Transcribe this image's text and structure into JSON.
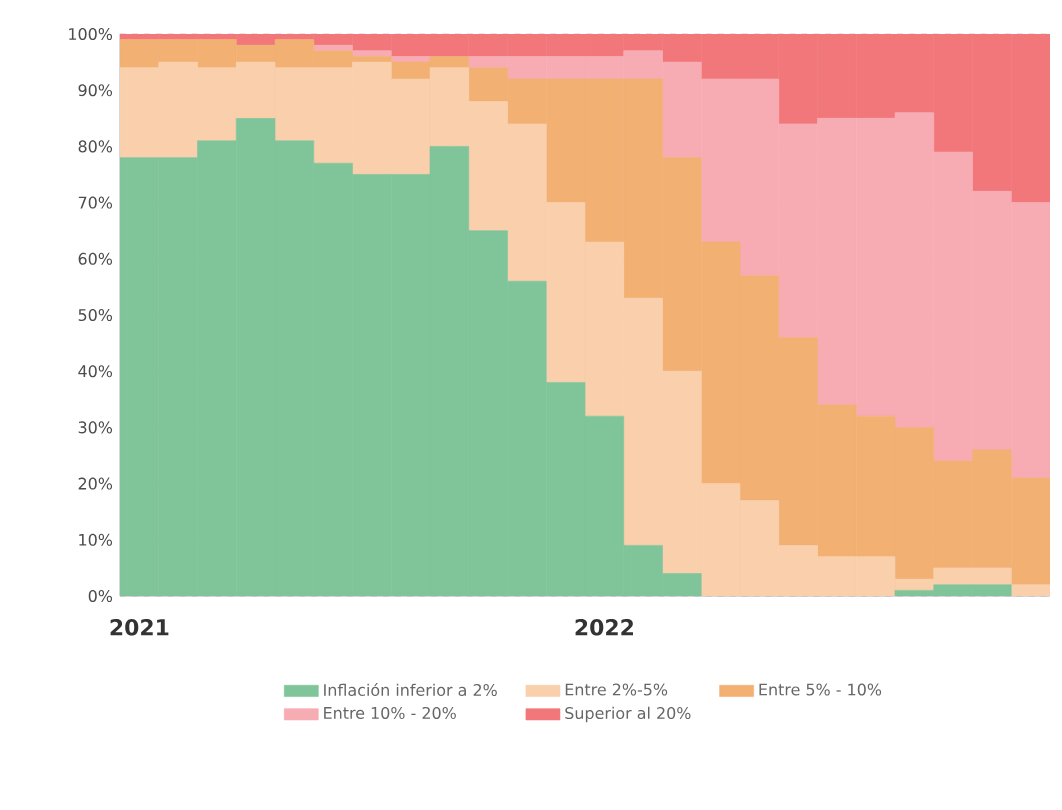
{
  "chart_data": {
    "type": "bar",
    "stacked": true,
    "categories": [
      "2021",
      null,
      null,
      null,
      null,
      null,
      null,
      null,
      null,
      null,
      null,
      null,
      "2022",
      null,
      null,
      null,
      null,
      null,
      null,
      null,
      null,
      null,
      null,
      null
    ],
    "series": [
      {
        "name": "Inflación inferior a 2%",
        "color": "#80c49a",
        "values": [
          78,
          78,
          81,
          85,
          81,
          77,
          75,
          75,
          80,
          65,
          56,
          38,
          32,
          9,
          4,
          0,
          0,
          0,
          0,
          0,
          1,
          2,
          2,
          0
        ]
      },
      {
        "name": "Entre 2%-5%",
        "color": "#f9cfac",
        "values": [
          16,
          17,
          13,
          10,
          13,
          17,
          20,
          17,
          14,
          23,
          28,
          32,
          31,
          44,
          36,
          20,
          17,
          9,
          7,
          7,
          2,
          3,
          3,
          2
        ]
      },
      {
        "name": "Entre 5% - 10%",
        "color": "#f2b073",
        "values": [
          5,
          4,
          5,
          3,
          5,
          3,
          1,
          3,
          2,
          6,
          8,
          22,
          29,
          39,
          38,
          43,
          40,
          37,
          27,
          25,
          27,
          19,
          21,
          19
        ]
      },
      {
        "name": "Entre 10% - 20%",
        "color": "#f7acb4",
        "values": [
          0,
          0,
          0,
          0,
          0,
          1,
          1,
          1,
          0,
          2,
          4,
          4,
          4,
          5,
          17,
          29,
          35,
          38,
          51,
          53,
          56,
          55,
          46,
          49
        ]
      },
      {
        "name": "Superior al 20%",
        "color": "#f2777b",
        "values": [
          1,
          1,
          1,
          2,
          1,
          2,
          3,
          4,
          4,
          4,
          4,
          4,
          4,
          3,
          5,
          8,
          8,
          16,
          15,
          15,
          14,
          21,
          28,
          30
        ]
      }
    ],
    "ylim": [
      0,
      100
    ],
    "yticks": [
      {
        "value": 0,
        "label": "0%"
      },
      {
        "value": 10,
        "label": "10%"
      },
      {
        "value": 20,
        "label": "20%"
      },
      {
        "value": 30,
        "label": "30%"
      },
      {
        "value": 40,
        "label": "40%"
      },
      {
        "value": 50,
        "label": "50%"
      },
      {
        "value": 60,
        "label": "60%"
      },
      {
        "value": 70,
        "label": "70%"
      },
      {
        "value": 80,
        "label": "80%"
      },
      {
        "value": 90,
        "label": "90%"
      },
      {
        "value": 100,
        "label": "100%"
      }
    ],
    "grid": "y",
    "legend": "bottom"
  }
}
